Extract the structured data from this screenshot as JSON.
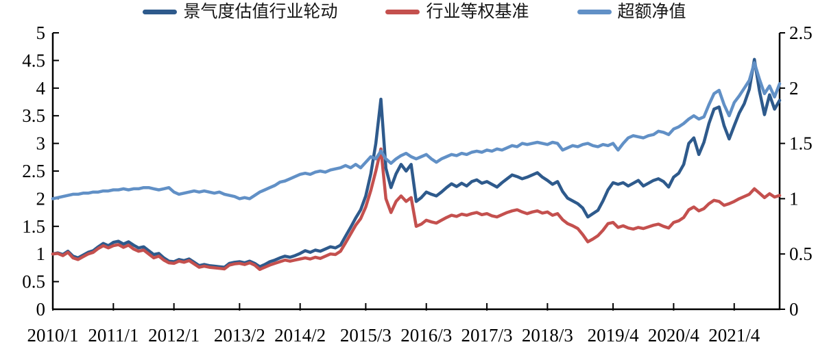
{
  "chart_data": {
    "type": "line",
    "title": "",
    "legend_position": "top",
    "grid": false,
    "plot_bg": "#ffffff",
    "axis_color": "#000000",
    "x_tick_labels": [
      "2010/1",
      "2011/1",
      "2012/1",
      "2013/2",
      "2014/2",
      "2015/3",
      "2016/3",
      "2017/3",
      "2018/3",
      "2019/4",
      "2020/4",
      "2021/4"
    ],
    "x_tick_month_index": [
      0,
      12,
      24,
      37,
      49,
      62,
      74,
      86,
      98,
      111,
      123,
      135
    ],
    "x_start": "2010/1",
    "x_end": "2022/1",
    "n_points": 145,
    "left_axis": {
      "min": 0,
      "max": 5,
      "tick_labels": [
        "0",
        "0.5",
        "1",
        "1.5",
        "2",
        "2.5",
        "3",
        "3.5",
        "4",
        "4.5",
        "5"
      ]
    },
    "right_axis": {
      "min": 0,
      "max": 2.5,
      "tick_labels": [
        "0",
        "0.5",
        "1",
        "1.5",
        "2",
        "2.5"
      ]
    },
    "series": [
      {
        "name": "景气度估值行业轮动",
        "color": "#2e5a8c",
        "axis": "left",
        "values": [
          1.0,
          1.02,
          0.99,
          1.05,
          0.96,
          0.93,
          0.98,
          1.03,
          1.06,
          1.13,
          1.19,
          1.15,
          1.21,
          1.23,
          1.18,
          1.22,
          1.16,
          1.11,
          1.13,
          1.06,
          0.99,
          1.01,
          0.93,
          0.87,
          0.86,
          0.9,
          0.88,
          0.91,
          0.85,
          0.79,
          0.81,
          0.79,
          0.78,
          0.77,
          0.76,
          0.83,
          0.85,
          0.86,
          0.84,
          0.87,
          0.83,
          0.77,
          0.81,
          0.86,
          0.89,
          0.93,
          0.96,
          0.94,
          0.97,
          1.01,
          1.06,
          1.03,
          1.07,
          1.05,
          1.09,
          1.13,
          1.11,
          1.16,
          1.32,
          1.48,
          1.65,
          1.8,
          2.05,
          2.45,
          3.0,
          3.8,
          2.55,
          2.2,
          2.45,
          2.62,
          2.5,
          2.62,
          1.95,
          2.02,
          2.12,
          2.08,
          2.05,
          2.12,
          2.2,
          2.27,
          2.22,
          2.28,
          2.23,
          2.31,
          2.34,
          2.28,
          2.31,
          2.26,
          2.21,
          2.29,
          2.36,
          2.43,
          2.4,
          2.36,
          2.39,
          2.43,
          2.47,
          2.39,
          2.33,
          2.26,
          2.31,
          2.13,
          2.01,
          1.96,
          1.91,
          1.83,
          1.67,
          1.73,
          1.79,
          1.96,
          2.16,
          2.29,
          2.26,
          2.29,
          2.23,
          2.28,
          2.33,
          2.23,
          2.28,
          2.33,
          2.36,
          2.31,
          2.21,
          2.39,
          2.46,
          2.62,
          3.0,
          3.1,
          2.8,
          3.02,
          3.36,
          3.62,
          3.66,
          3.32,
          3.08,
          3.32,
          3.55,
          3.72,
          3.98,
          4.52,
          3.95,
          3.52,
          3.88,
          3.62,
          3.78
        ]
      },
      {
        "name": "行业等权基准",
        "color": "#c4504e",
        "axis": "left",
        "values": [
          1.0,
          1.01,
          0.97,
          1.03,
          0.93,
          0.9,
          0.95,
          1.0,
          1.03,
          1.1,
          1.15,
          1.11,
          1.15,
          1.17,
          1.12,
          1.16,
          1.09,
          1.05,
          1.07,
          1.0,
          0.93,
          0.96,
          0.89,
          0.84,
          0.83,
          0.87,
          0.85,
          0.88,
          0.82,
          0.76,
          0.78,
          0.76,
          0.75,
          0.74,
          0.73,
          0.8,
          0.82,
          0.83,
          0.81,
          0.84,
          0.8,
          0.72,
          0.76,
          0.8,
          0.83,
          0.86,
          0.89,
          0.87,
          0.89,
          0.91,
          0.93,
          0.91,
          0.94,
          0.92,
          0.96,
          1.0,
          0.99,
          1.05,
          1.2,
          1.36,
          1.52,
          1.64,
          1.85,
          2.15,
          2.5,
          2.9,
          2.0,
          1.75,
          1.95,
          2.05,
          1.95,
          2.02,
          1.5,
          1.54,
          1.61,
          1.58,
          1.56,
          1.61,
          1.66,
          1.7,
          1.68,
          1.72,
          1.7,
          1.73,
          1.75,
          1.71,
          1.73,
          1.69,
          1.67,
          1.71,
          1.75,
          1.78,
          1.8,
          1.76,
          1.73,
          1.76,
          1.78,
          1.74,
          1.76,
          1.7,
          1.73,
          1.62,
          1.55,
          1.51,
          1.46,
          1.35,
          1.22,
          1.27,
          1.33,
          1.43,
          1.55,
          1.57,
          1.48,
          1.51,
          1.47,
          1.45,
          1.48,
          1.46,
          1.49,
          1.52,
          1.54,
          1.5,
          1.47,
          1.57,
          1.6,
          1.66,
          1.8,
          1.85,
          1.78,
          1.82,
          1.91,
          1.97,
          1.95,
          1.88,
          1.91,
          1.95,
          2.0,
          2.04,
          2.08,
          2.18,
          2.1,
          2.02,
          2.09,
          2.03,
          2.06
        ]
      },
      {
        "name": "超额净值",
        "color": "#6190c6",
        "axis": "right",
        "values": [
          1.0,
          1.01,
          1.02,
          1.03,
          1.04,
          1.04,
          1.05,
          1.05,
          1.06,
          1.06,
          1.07,
          1.07,
          1.08,
          1.08,
          1.09,
          1.08,
          1.09,
          1.09,
          1.1,
          1.1,
          1.09,
          1.08,
          1.09,
          1.1,
          1.06,
          1.04,
          1.05,
          1.06,
          1.07,
          1.06,
          1.07,
          1.06,
          1.05,
          1.06,
          1.04,
          1.03,
          1.02,
          1.0,
          1.01,
          1.0,
          1.03,
          1.06,
          1.08,
          1.1,
          1.12,
          1.15,
          1.16,
          1.18,
          1.2,
          1.22,
          1.23,
          1.22,
          1.24,
          1.25,
          1.24,
          1.26,
          1.27,
          1.28,
          1.3,
          1.28,
          1.31,
          1.28,
          1.33,
          1.38,
          1.36,
          1.43,
          1.36,
          1.32,
          1.36,
          1.39,
          1.41,
          1.38,
          1.36,
          1.38,
          1.4,
          1.36,
          1.33,
          1.36,
          1.38,
          1.4,
          1.39,
          1.41,
          1.4,
          1.42,
          1.43,
          1.42,
          1.44,
          1.43,
          1.45,
          1.44,
          1.46,
          1.48,
          1.47,
          1.5,
          1.49,
          1.5,
          1.51,
          1.5,
          1.49,
          1.51,
          1.5,
          1.44,
          1.46,
          1.48,
          1.47,
          1.49,
          1.5,
          1.48,
          1.47,
          1.49,
          1.48,
          1.5,
          1.44,
          1.5,
          1.55,
          1.57,
          1.56,
          1.55,
          1.57,
          1.58,
          1.61,
          1.6,
          1.58,
          1.63,
          1.65,
          1.68,
          1.72,
          1.75,
          1.72,
          1.74,
          1.85,
          1.95,
          1.98,
          1.85,
          1.75,
          1.87,
          1.93,
          2.0,
          2.07,
          2.23,
          2.08,
          1.95,
          2.02,
          1.92,
          2.04
        ]
      }
    ]
  }
}
